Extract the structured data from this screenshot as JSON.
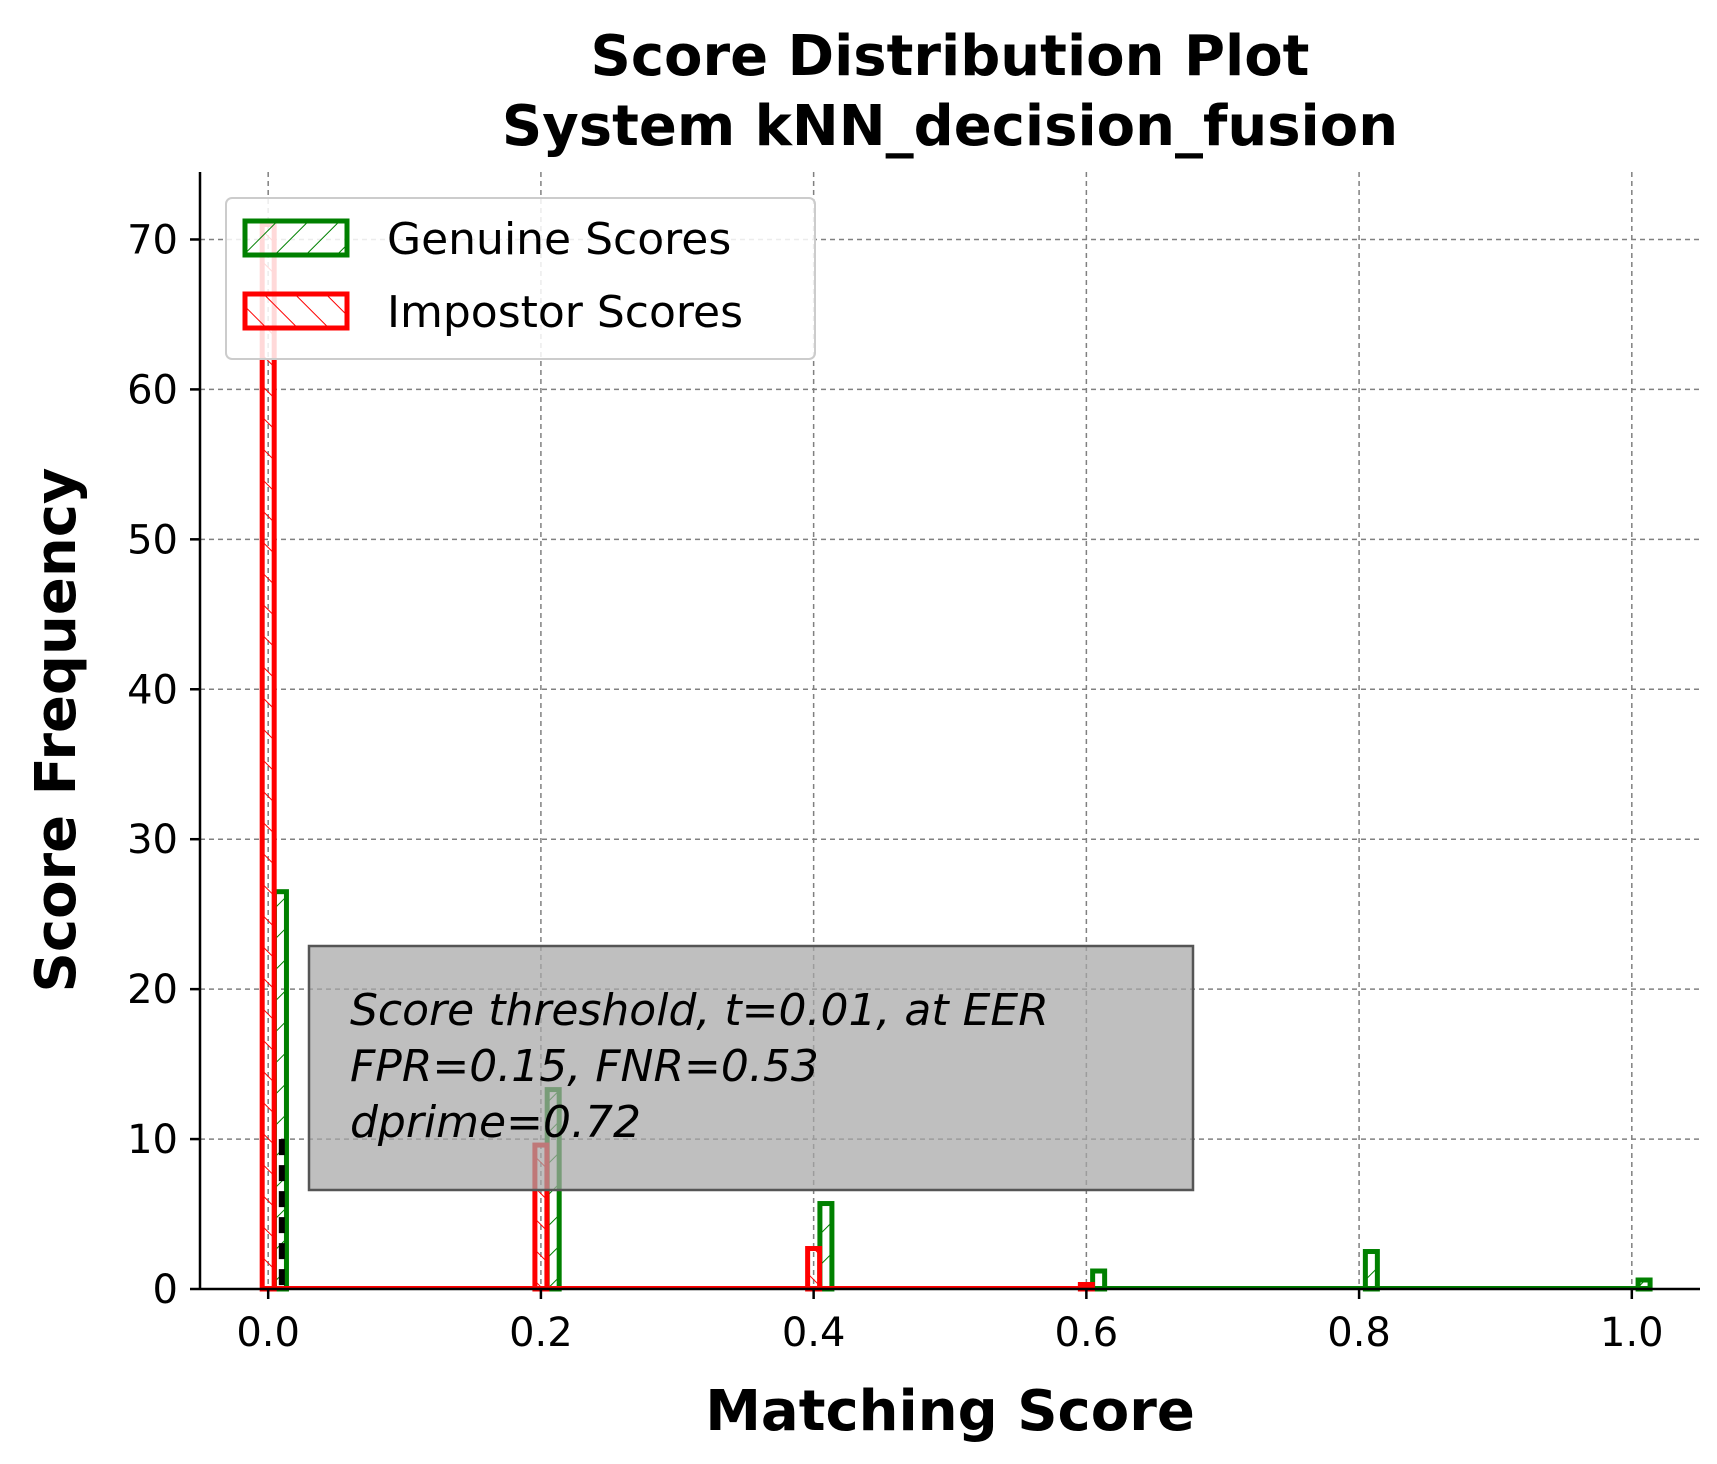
{
  "chart_data": {
    "type": "bar",
    "title": "Score Distribution Plot",
    "subtitle": "System kNN_decision_fusion",
    "xlabel": "Matching Score",
    "ylabel": "Score Frequency",
    "xlim": [
      -0.05,
      1.05
    ],
    "ylim": [
      0,
      74.5
    ],
    "xticks": [
      0.0,
      0.2,
      0.4,
      0.6,
      0.8,
      1.0
    ],
    "xtick_labels": [
      "0.0",
      "0.2",
      "0.4",
      "0.6",
      "0.8",
      "1.0"
    ],
    "yticks": [
      0,
      10,
      20,
      30,
      40,
      50,
      60,
      70
    ],
    "ytick_labels": [
      "0",
      "10",
      "20",
      "30",
      "40",
      "50",
      "60",
      "70"
    ],
    "grid": true,
    "legend_position": "upper-left",
    "histogram_bins": 50,
    "series": [
      {
        "name": "Genuine Scores",
        "color": "#008000",
        "hatch": "forward-slash",
        "bars": [
          {
            "x": 0.0,
            "value": 26.5
          },
          {
            "x": 0.2,
            "value": 13.3
          },
          {
            "x": 0.4,
            "value": 5.7
          },
          {
            "x": 0.6,
            "value": 1.2
          },
          {
            "x": 0.8,
            "value": 2.5
          },
          {
            "x": 1.0,
            "value": 0.6
          }
        ]
      },
      {
        "name": "Impostor Scores",
        "color": "#ff0000",
        "hatch": "back-slash",
        "bars": [
          {
            "x": 0.0,
            "value": 71.0
          },
          {
            "x": 0.2,
            "value": 9.6
          },
          {
            "x": 0.4,
            "value": 2.7
          },
          {
            "x": 0.6,
            "value": 0.3
          }
        ]
      }
    ],
    "threshold": {
      "x": 0.01,
      "height": 10
    },
    "annotation": {
      "lines": [
        "Score threshold, t=0.01, at EER",
        "FPR=0.15, FNR=0.53",
        "dprime=0.72"
      ]
    }
  }
}
